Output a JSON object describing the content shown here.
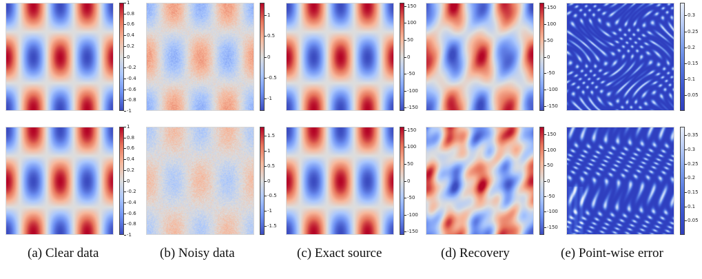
{
  "captions": {
    "a": "(a) Clear data",
    "b": "(b) Noisy data",
    "c": "(c) Exact source",
    "d": "(d) Recovery",
    "e": "(e) Point-wise error"
  },
  "colormaps": {
    "coolwarm": [
      "#3b4cc0",
      "#6f92f3",
      "#aac7fd",
      "#dddddd",
      "#f7b89c",
      "#e7745b",
      "#b40426"
    ],
    "error": [
      "#2f3fbf",
      "#3b55d0",
      "#5577e0",
      "#7da0ee",
      "#b7cbf6",
      "#e8eefb"
    ]
  },
  "rows": [
    {
      "name": "row-1",
      "panels": [
        {
          "id": "a",
          "kind": "clean",
          "scale": 1,
          "range": [
            -1,
            1
          ],
          "ticks": [
            "1",
            "0.8",
            "0.6",
            "0.4",
            "0.2",
            "0",
            "-0.2",
            "-0.4",
            "-0.6",
            "-0.8",
            "-1"
          ],
          "tick_values": [
            1,
            0.8,
            0.6,
            0.4,
            0.2,
            0,
            -0.2,
            -0.4,
            -0.6,
            -0.8,
            -1
          ]
        },
        {
          "id": "b",
          "kind": "noisy",
          "scale": 0.6,
          "range": [
            -1.3,
            1.3
          ],
          "ticks": [
            "1",
            "0.5",
            "0",
            "-0.5",
            "-1"
          ],
          "tick_values": [
            1,
            0.5,
            0,
            -0.5,
            -1
          ]
        },
        {
          "id": "c",
          "kind": "clean",
          "scale": 1,
          "range": [
            -160,
            160
          ],
          "ticks": [
            "150",
            "100",
            "50",
            "0",
            "-50",
            "-100",
            "-150"
          ],
          "tick_values": [
            150,
            100,
            50,
            0,
            -50,
            -100,
            -150
          ]
        },
        {
          "id": "d",
          "kind": "recovery",
          "scale": 1,
          "range": [
            -165,
            165
          ],
          "ticks": [
            "150",
            "100",
            "50",
            "0",
            "-50",
            "-100",
            "-150"
          ],
          "tick_values": [
            150,
            100,
            50,
            0,
            -50,
            -100,
            -150
          ]
        },
        {
          "id": "e",
          "kind": "error",
          "scale": 1,
          "range": [
            0,
            0.34
          ],
          "ticks": [
            "0.3",
            "0.25",
            "0.2",
            "0.15",
            "0.1",
            "0.05"
          ],
          "tick_values": [
            0.3,
            0.25,
            0.2,
            0.15,
            0.1,
            0.05
          ]
        }
      ]
    },
    {
      "name": "row-2",
      "panels": [
        {
          "id": "a",
          "kind": "clean",
          "scale": 1,
          "range": [
            -1,
            1
          ],
          "ticks": [
            "1",
            "0.8",
            "0.6",
            "0.4",
            "0.2",
            "0",
            "-0.2",
            "-0.4",
            "-0.6",
            "-0.8",
            "-1"
          ],
          "tick_values": [
            1,
            0.8,
            0.6,
            0.4,
            0.2,
            0,
            -0.2,
            -0.4,
            -0.6,
            -0.8,
            -1
          ]
        },
        {
          "id": "b",
          "kind": "noisy2",
          "scale": 0.45,
          "range": [
            -1.8,
            1.8
          ],
          "ticks": [
            "1.5",
            "1",
            "0.5",
            "0",
            "-0.5",
            "-1",
            "-1.5"
          ],
          "tick_values": [
            1.5,
            1,
            0.5,
            0,
            -0.5,
            -1,
            -1.5
          ]
        },
        {
          "id": "c",
          "kind": "clean",
          "scale": 1,
          "range": [
            -160,
            160
          ],
          "ticks": [
            "150",
            "100",
            "50",
            "0",
            "-50",
            "-100",
            "-150"
          ],
          "tick_values": [
            150,
            100,
            50,
            0,
            -50,
            -100,
            -150
          ]
        },
        {
          "id": "d",
          "kind": "recovery2",
          "scale": 1,
          "range": [
            -175,
            175
          ],
          "ticks": [
            "150",
            "100",
            "50",
            "0",
            "-50",
            "-100",
            "-150"
          ],
          "tick_values": [
            150,
            100,
            50,
            0,
            -50,
            -100,
            -150
          ]
        },
        {
          "id": "e",
          "kind": "error2",
          "scale": 1,
          "range": [
            0,
            0.38
          ],
          "ticks": [
            "0.35",
            "0.3",
            "0.25",
            "0.2",
            "0.15",
            "0.1",
            "0.05"
          ],
          "tick_values": [
            0.35,
            0.3,
            0.25,
            0.2,
            0.15,
            0.1,
            0.05
          ]
        }
      ]
    }
  ]
}
